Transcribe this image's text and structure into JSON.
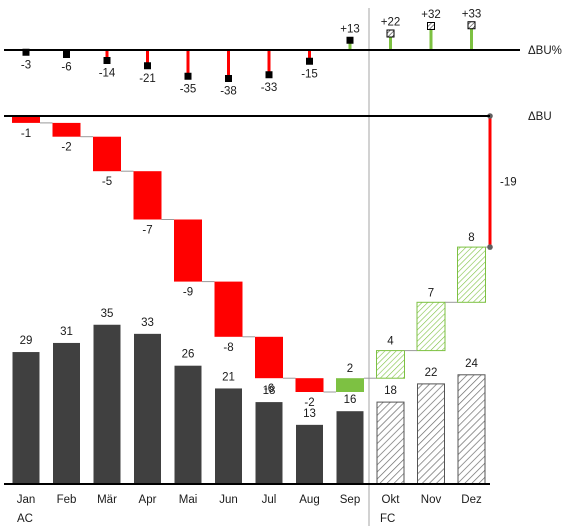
{
  "chart_data": [
    {
      "type": "bar",
      "label": "ΔBU%",
      "categories": [
        "Jan",
        "Feb",
        "Mär",
        "Apr",
        "Mai",
        "Jun",
        "Jul",
        "Aug",
        "Sep",
        "Okt",
        "Nov",
        "Dez"
      ],
      "values": [
        -3,
        -6,
        -14,
        -21,
        -35,
        -38,
        -33,
        -15,
        13,
        22,
        32,
        33
      ],
      "value_labels": [
        "-3",
        "-6",
        "-14",
        "-21",
        "-35",
        "-38",
        "-33",
        "-15",
        "+13",
        "+22",
        "+32",
        "+33"
      ]
    },
    {
      "type": "waterfall",
      "label": "ΔBU",
      "categories": [
        "Jan",
        "Feb",
        "Mär",
        "Apr",
        "Mai",
        "Jun",
        "Jul",
        "Aug",
        "Sep",
        "Okt",
        "Nov",
        "Dez"
      ],
      "values": [
        -1,
        -2,
        -5,
        -7,
        -9,
        -8,
        -6,
        -2,
        2,
        4,
        7,
        8
      ],
      "value_labels": [
        "-1",
        "-2",
        "-5",
        "-7",
        "-9",
        "-8",
        "-6",
        "-2",
        "2",
        "4",
        "7",
        "8"
      ],
      "total_label": "-19"
    },
    {
      "type": "bar",
      "categories": [
        "Jan",
        "Feb",
        "Mär",
        "Apr",
        "Mai",
        "Jun",
        "Jul",
        "Aug",
        "Sep",
        "Okt",
        "Nov",
        "Dez"
      ],
      "values": [
        29,
        31,
        35,
        33,
        26,
        21,
        18,
        13,
        16,
        18,
        22,
        24
      ],
      "value_labels": [
        "29",
        "31",
        "35",
        "33",
        "26",
        "21",
        "18",
        "13",
        "16",
        "18",
        "22",
        "24"
      ]
    }
  ],
  "scenario_labels": [
    "AC",
    "FC"
  ],
  "forecast_start_index": 9,
  "colors": {
    "negative": "#ff0000",
    "positive": "#7dc142",
    "actual": "#404040",
    "forecast_hatch": "#6b6b6b",
    "axis": "#000000",
    "divider": "#a6a6a6",
    "total_marker": "#606060"
  }
}
